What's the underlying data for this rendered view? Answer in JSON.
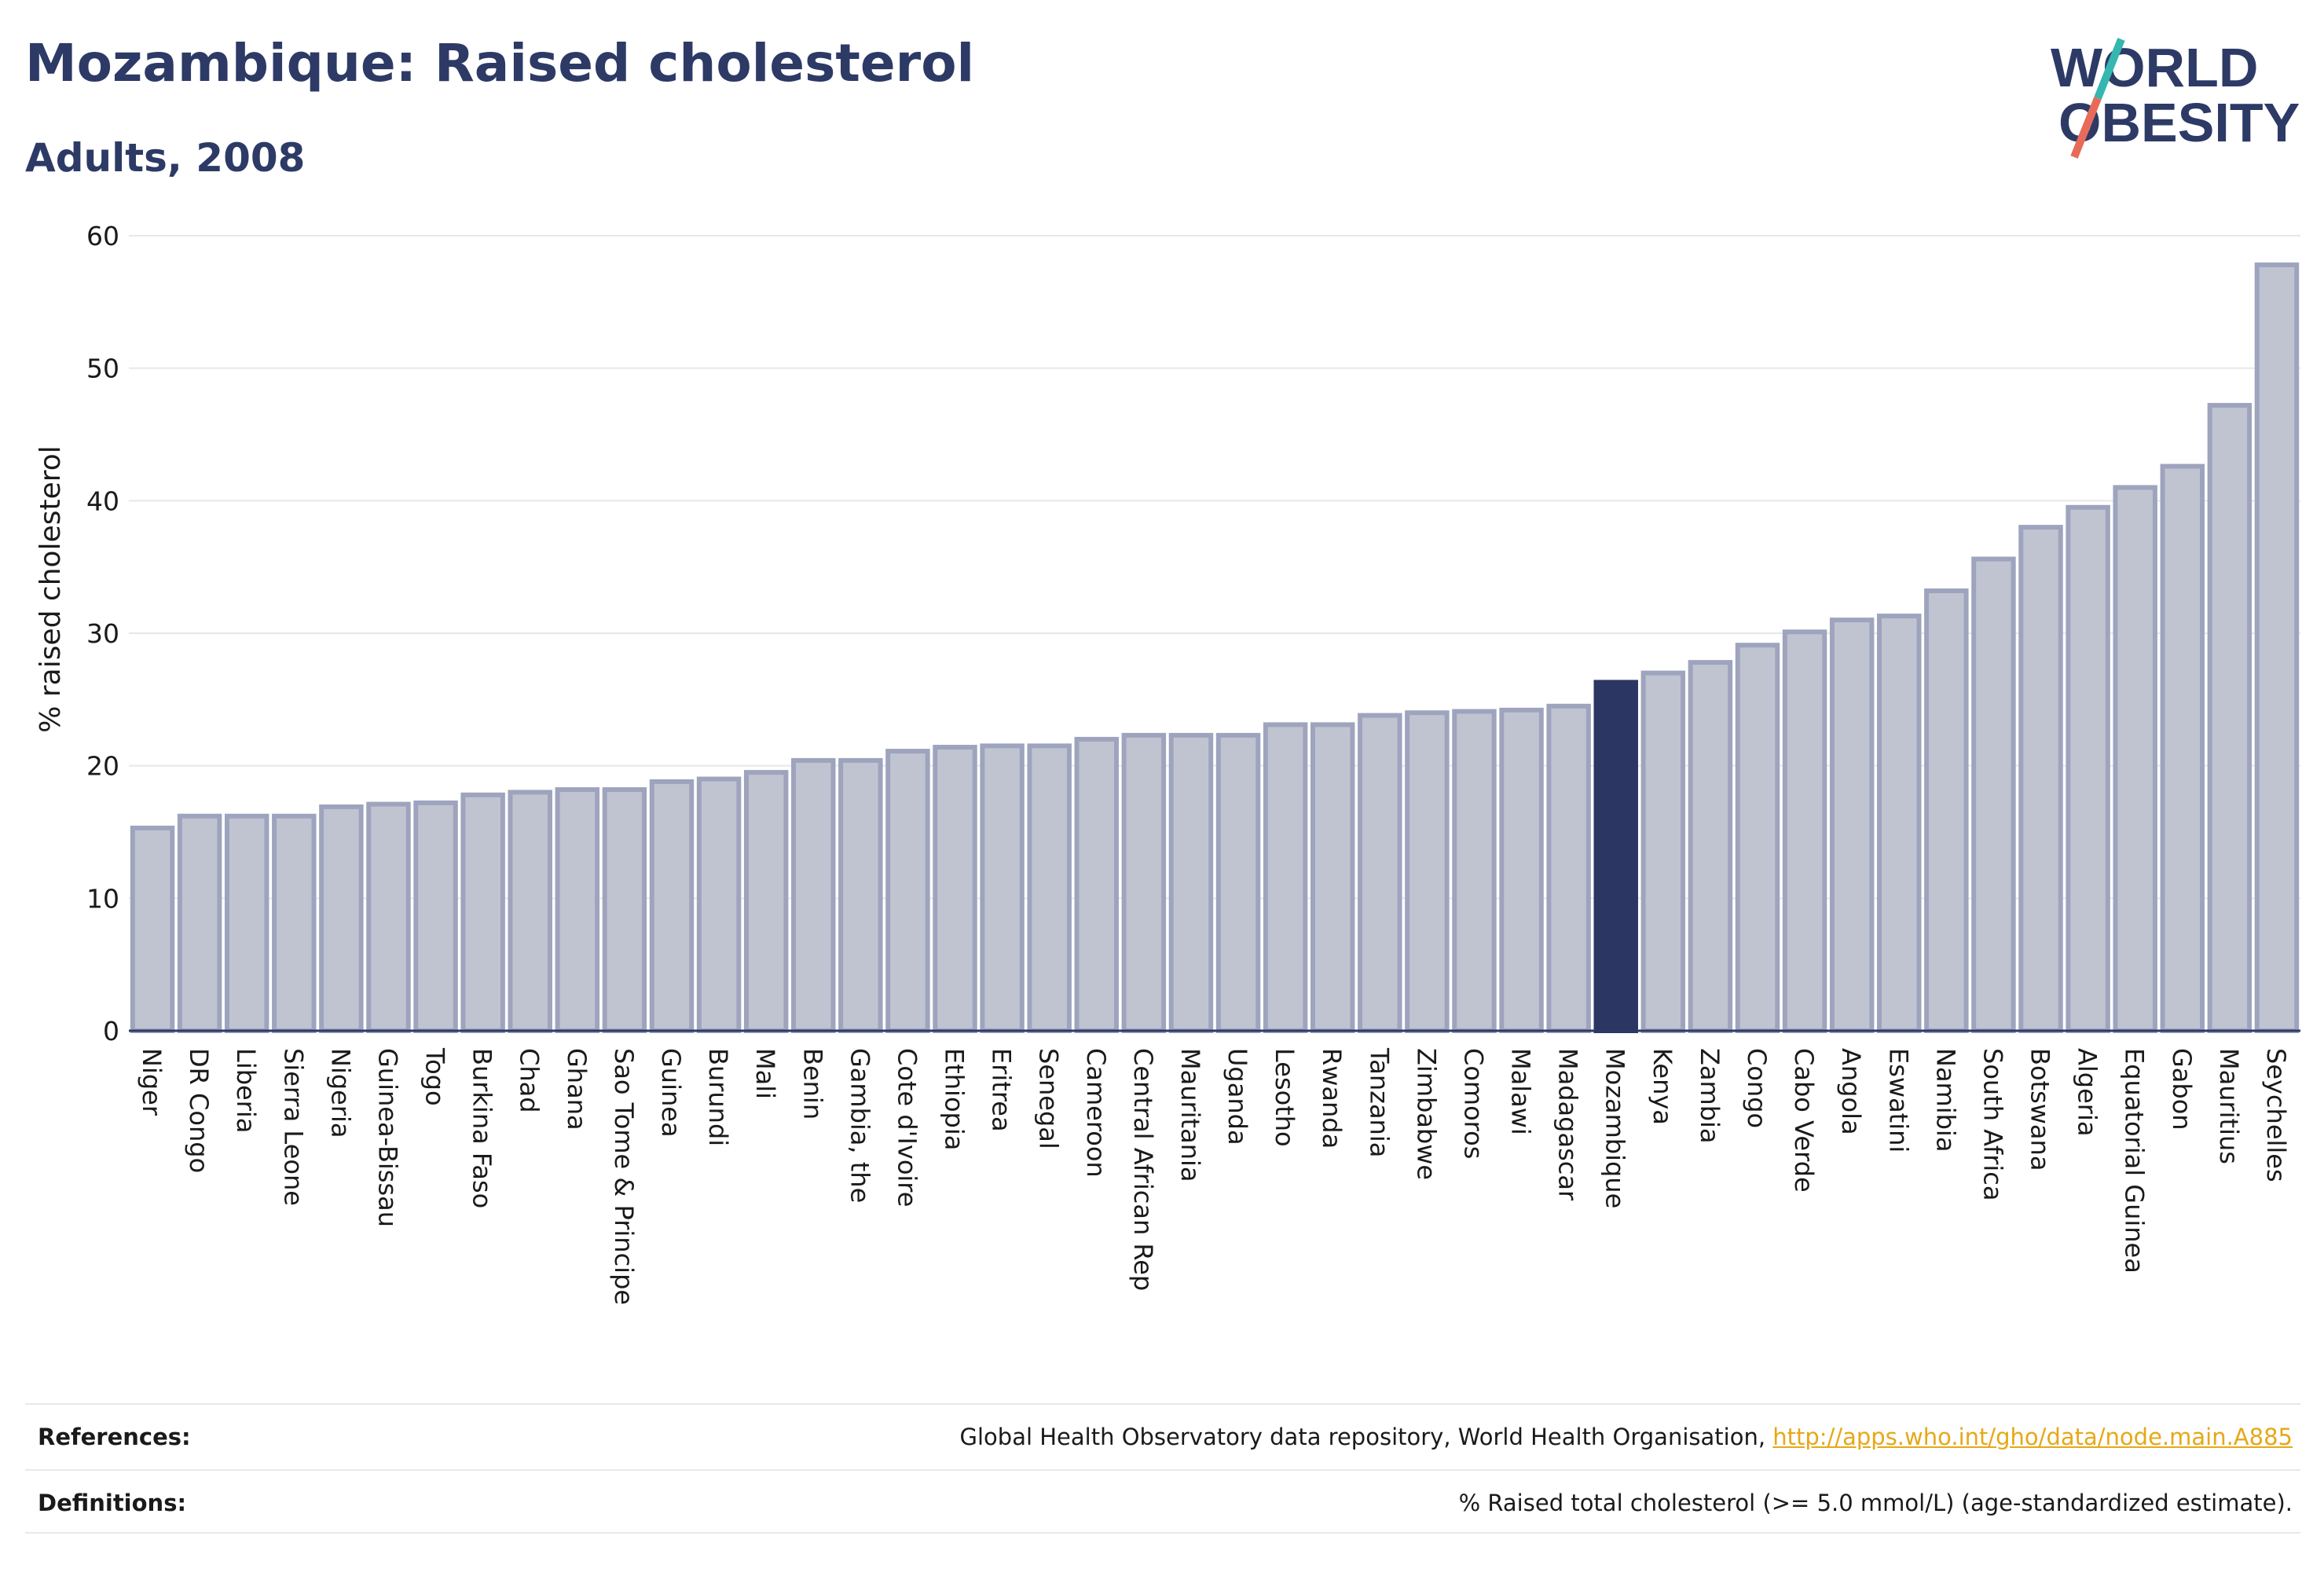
{
  "title": "Mozambique: Raised cholesterol",
  "subtitle": "Adults, 2008",
  "logo": {
    "line1": "WORLD",
    "line2": "OBESITY"
  },
  "colors": {
    "highlight": "#2b3663",
    "bar_fill": "#c0c4d1",
    "bar_stroke": "#9ea4bd",
    "text": "#2d3a66",
    "link": "#e6a817"
  },
  "chart_data": {
    "type": "bar",
    "ylabel": "% raised cholesterol",
    "ylim": [
      0,
      60
    ],
    "yticks": [
      0,
      10,
      20,
      30,
      40,
      50,
      60
    ],
    "grid": true,
    "highlight": "Mozambique",
    "categories": [
      "Niger",
      "DR Congo",
      "Liberia",
      "Sierra Leone",
      "Nigeria",
      "Guinea-Bissau",
      "Togo",
      "Burkina Faso",
      "Chad",
      "Ghana",
      "Sao Tome & Principe",
      "Guinea",
      "Burundi",
      "Mali",
      "Benin",
      "Gambia, the",
      "Cote d'Ivoire",
      "Ethiopia",
      "Eritrea",
      "Senegal",
      "Cameroon",
      "Central African Rep",
      "Mauritania",
      "Uganda",
      "Lesotho",
      "Rwanda",
      "Tanzania",
      "Zimbabwe",
      "Comoros",
      "Malawi",
      "Madagascar",
      "Mozambique",
      "Kenya",
      "Zambia",
      "Congo",
      "Cabo Verde",
      "Angola",
      "Eswatini",
      "Namibia",
      "South Africa",
      "Botswana",
      "Algeria",
      "Equatorial Guinea",
      "Gabon",
      "Mauritius",
      "Seychelles"
    ],
    "values": [
      15.3,
      16.2,
      16.2,
      16.2,
      16.9,
      17.1,
      17.2,
      17.8,
      18.0,
      18.2,
      18.2,
      18.8,
      19.0,
      19.5,
      20.4,
      20.4,
      21.1,
      21.4,
      21.5,
      21.5,
      22.0,
      22.3,
      22.3,
      22.3,
      23.1,
      23.1,
      23.8,
      24.0,
      24.1,
      24.2,
      24.5,
      26.3,
      27.0,
      27.8,
      29.1,
      30.1,
      31.0,
      31.3,
      33.2,
      35.6,
      38.0,
      39.5,
      41.0,
      42.6,
      47.2,
      57.8
    ]
  },
  "footer": {
    "references_label": "References:",
    "references_text": "Global Health Observatory data repository, World Health Organisation, ",
    "references_link": "http://apps.who.int/gho/data/node.main.A885",
    "definitions_label": "Definitions:",
    "definitions_text": "% Raised total cholesterol (>= 5.0 mmol/L) (age-standardized estimate)."
  }
}
